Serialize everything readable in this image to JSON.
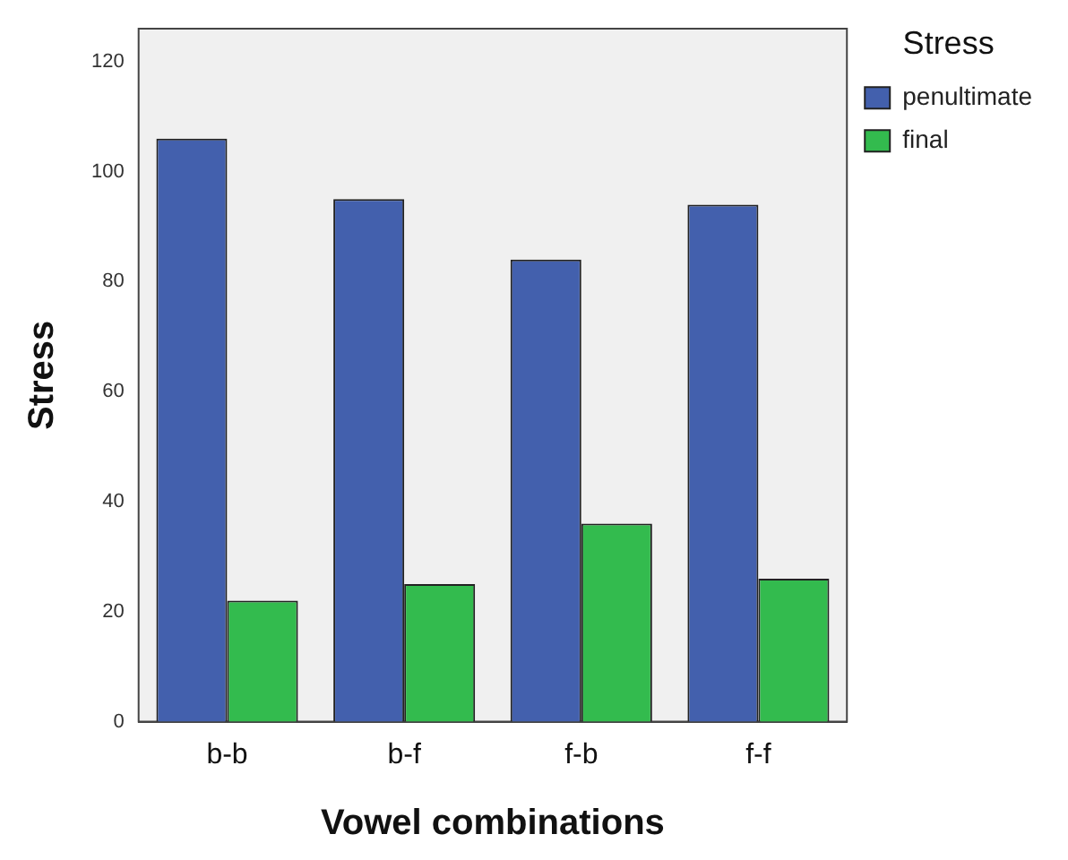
{
  "chart_data": {
    "type": "bar",
    "xlabel": "Vowel combinations",
    "ylabel": "Stress",
    "legend_title": "Stress",
    "legend": "top right",
    "grid": false,
    "categories": [
      "b-b",
      "b-f",
      "f-b",
      "f-f"
    ],
    "series": [
      {
        "name": "penultimate",
        "color": "#4360ad",
        "values": [
          106,
          95,
          84,
          94
        ]
      },
      {
        "name": "final",
        "color": "#33bb4e",
        "values": [
          22,
          25,
          36,
          26
        ]
      }
    ],
    "ylim": [
      0,
      126
    ],
    "yticks": [
      0,
      20,
      40,
      60,
      80,
      100,
      120
    ]
  }
}
